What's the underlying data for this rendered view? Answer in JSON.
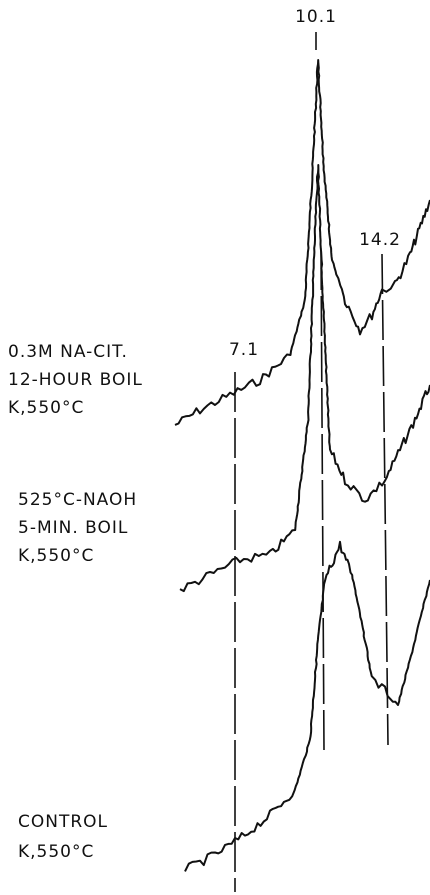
{
  "peaks": [
    {
      "label": "10.1"
    },
    {
      "label": "14.2"
    },
    {
      "label": "7.1"
    }
  ],
  "traces": [
    {
      "lines": [
        "0.3M NA-CIT.",
        "12-HOUR BOIL",
        "K,550°C"
      ]
    },
    {
      "lines": [
        "525°C-NAOH",
        "5-MIN. BOIL",
        "K,550°C"
      ]
    },
    {
      "lines": [
        "CONTROL",
        "K,550°C"
      ]
    }
  ]
}
